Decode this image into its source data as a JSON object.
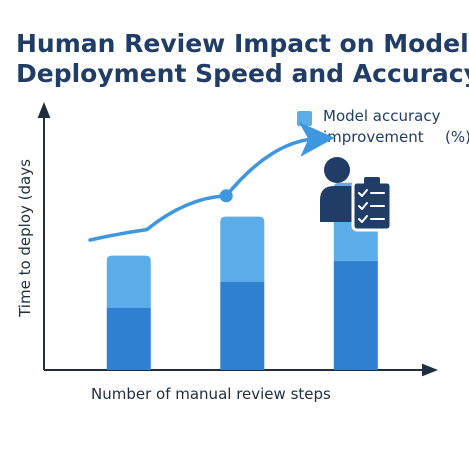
{
  "title_line1": "Human Review Impact on Model",
  "title_line2": "Deployment Speed and Accuracy",
  "legend": {
    "line1": "Model accuracy",
    "line2": "improvement",
    "unit": "(%)"
  },
  "icon": "reviewer-checklist-icon",
  "colors": {
    "title": "#1f3d66",
    "bar_dark": "#2f80d0",
    "bar_light": "#5aade8",
    "trend": "#3d96e0",
    "axis": "#1f2d3d",
    "icon": "#1f3d66"
  },
  "chart_data": {
    "type": "bar",
    "title": "Human Review Impact on Model Deployment Speed and Accuracy",
    "xlabel": "Number of manual review steps",
    "ylabel": "Time to deploy (days",
    "categories": [
      "",
      "",
      ""
    ],
    "ylim": [
      0,
      10
    ],
    "grid": false,
    "legend_position": "top-right",
    "series": [
      {
        "name": "",
        "values": [
          2.4,
          3.4,
          4.2
        ]
      },
      {
        "name": "Model accuracy improvement (%)",
        "values": [
          2.0,
          2.5,
          3.0
        ]
      }
    ],
    "stacked": true,
    "trend_arrow": {
      "x": [
        0.5,
        1.0,
        1.7,
        2.5
      ],
      "y": [
        5.0,
        5.4,
        6.7,
        8.9
      ]
    }
  }
}
